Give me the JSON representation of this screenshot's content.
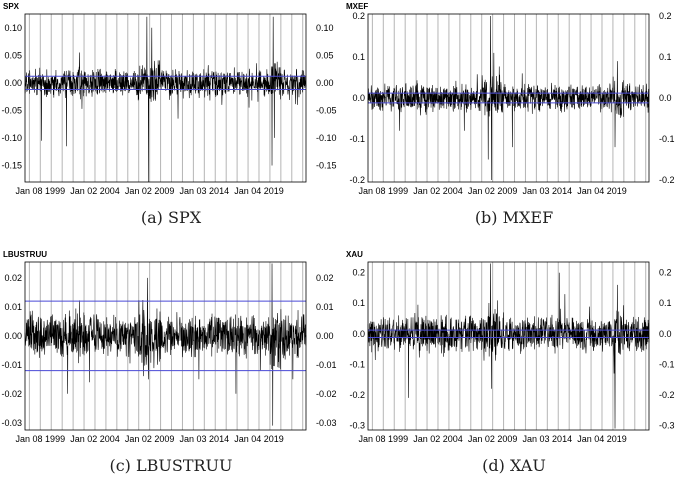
{
  "chart_data": [
    {
      "type": "line",
      "title": "SPX",
      "caption": "(a) SPX",
      "ylim": [
        -0.18,
        0.125
      ],
      "yticks": [
        "0.10",
        "0.05",
        "0.00",
        "-0.05",
        "-0.10",
        "-0.15"
      ],
      "ytick_values": [
        0.1,
        0.05,
        0.0,
        -0.05,
        -0.1,
        -0.15
      ],
      "xticks": [
        "Jan 08 1999",
        "Jan 02 2004",
        "Jan 02 2009",
        "Jan 03 2014",
        "Jan 04 2019"
      ],
      "xtick_years": [
        1999.0,
        2004.0,
        2009.0,
        2014.0,
        2019.0
      ],
      "xlim": [
        1997.6,
        2023.3
      ],
      "hlines": [
        0.012,
        -0.012
      ],
      "noise": 0.024,
      "spikes": [
        {
          "x": 2002.6,
          "y": 0.055
        },
        {
          "x": 2008.75,
          "y": 0.12
        },
        {
          "x": 2008.9,
          "y": -0.18
        },
        {
          "x": 2009.2,
          "y": 0.1
        },
        {
          "x": 2001.4,
          "y": -0.115
        },
        {
          "x": 1999.1,
          "y": -0.105
        },
        {
          "x": 2011.6,
          "y": -0.065
        },
        {
          "x": 2015.6,
          "y": -0.04
        },
        {
          "x": 2018.1,
          "y": -0.045
        },
        {
          "x": 2020.2,
          "y": -0.15
        },
        {
          "x": 2020.3,
          "y": 0.12
        },
        {
          "x": 2020.4,
          "y": -0.1
        },
        {
          "x": 2022.5,
          "y": -0.04
        }
      ],
      "grid": true
    },
    {
      "type": "line",
      "title": "MXEF",
      "caption": "(b) MXEF",
      "ylim": [
        -0.205,
        0.205
      ],
      "yticks": [
        "0.2",
        "0.1",
        "0.0",
        "-0.1",
        "-0.2"
      ],
      "ytick_values": [
        0.2,
        0.1,
        0.0,
        -0.1,
        -0.2
      ],
      "xticks": [
        "Jan 08 1999",
        "Jan 02 2004",
        "Jan 02 2009",
        "Jan 03 2014",
        "Jan 04 2019"
      ],
      "xtick_years": [
        1999.0,
        2004.0,
        2009.0,
        2014.0,
        2019.0
      ],
      "xlim": [
        1997.6,
        2023.3
      ],
      "hlines": [
        0.012,
        -0.012
      ],
      "noise": 0.032,
      "spikes": [
        {
          "x": 2008.8,
          "y": 0.2
        },
        {
          "x": 2008.9,
          "y": -0.2
        },
        {
          "x": 2008.6,
          "y": -0.15
        },
        {
          "x": 2009.1,
          "y": 0.11
        },
        {
          "x": 2010.8,
          "y": -0.12
        },
        {
          "x": 2000.5,
          "y": -0.08
        },
        {
          "x": 2006.4,
          "y": -0.08
        },
        {
          "x": 2011.7,
          "y": 0.06
        },
        {
          "x": 2020.2,
          "y": -0.12
        },
        {
          "x": 2020.4,
          "y": 0.09
        }
      ],
      "grid": true
    },
    {
      "type": "line",
      "title": "LBUSTRUU",
      "caption": "(c) LBUSTRUU",
      "ylim": [
        -0.0325,
        0.0255
      ],
      "yticks": [
        "0.02",
        "0.01",
        "0.00",
        "-0.01",
        "-0.02",
        "-0.03"
      ],
      "ytick_values": [
        0.02,
        0.01,
        0.0,
        -0.01,
        -0.02,
        -0.03
      ],
      "xticks": [
        "Jan 08 1999",
        "Jan 02 2004",
        "Jan 02 2009",
        "Jan 03 2014",
        "Jan 04 2019"
      ],
      "xtick_years": [
        1999.0,
        2004.0,
        2009.0,
        2014.0,
        2019.0
      ],
      "xlim": [
        1997.6,
        2023.3
      ],
      "hlines": [
        0.012,
        -0.012
      ],
      "noise": 0.007,
      "spikes": [
        {
          "x": 2008.8,
          "y": 0.02
        },
        {
          "x": 2008.9,
          "y": -0.015
        },
        {
          "x": 2001.5,
          "y": -0.02
        },
        {
          "x": 2003.5,
          "y": -0.016
        },
        {
          "x": 2013.5,
          "y": -0.015
        },
        {
          "x": 2016.9,
          "y": -0.02
        },
        {
          "x": 2020.2,
          "y": 0.025
        },
        {
          "x": 2020.25,
          "y": -0.031
        },
        {
          "x": 2022.1,
          "y": -0.015
        }
      ],
      "grid": true
    },
    {
      "type": "line",
      "title": "XAU",
      "caption": "(d) XAU",
      "ylim": [
        -0.315,
        0.235
      ],
      "yticks": [
        "0.2",
        "0.1",
        "0.0",
        "-0.1",
        "-0.2",
        "-0.3"
      ],
      "ytick_values": [
        0.2,
        0.1,
        0.0,
        -0.1,
        -0.2,
        -0.3
      ],
      "xticks": [
        "Jan 08 1999",
        "Jan 02 2004",
        "Jan 02 2009",
        "Jan 03 2014",
        "Jan 04 2019"
      ],
      "xtick_years": [
        1999.0,
        2004.0,
        2009.0,
        2014.0,
        2019.0
      ],
      "xlim": [
        1997.6,
        2023.3
      ],
      "hlines": [
        0.012,
        -0.012
      ],
      "noise": 0.055,
      "spikes": [
        {
          "x": 2008.8,
          "y": 0.23
        },
        {
          "x": 2008.9,
          "y": -0.18
        },
        {
          "x": 2001.3,
          "y": -0.21
        },
        {
          "x": 2015.1,
          "y": 0.2
        },
        {
          "x": 2015.6,
          "y": 0.13
        },
        {
          "x": 2020.2,
          "y": -0.31
        },
        {
          "x": 2020.4,
          "y": 0.16
        },
        {
          "x": 2020.1,
          "y": -0.13
        }
      ],
      "grid": true
    }
  ]
}
